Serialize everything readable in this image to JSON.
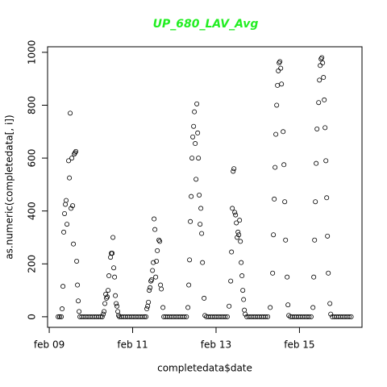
{
  "chart_data": {
    "type": "scatter",
    "title": "UP_680_LAV_Avg",
    "title_color": "#22ee22",
    "xlabel": "completedata$date",
    "ylabel": "as.numeric(completedata[, i])",
    "color": "#000000",
    "grid": false,
    "xlim": [
      -0.04,
      7.5
    ],
    "ylim": [
      -40,
      1021
    ],
    "xticks": [
      {
        "value": 0,
        "label": "feb 09"
      },
      {
        "value": 2,
        "label": "feb 11"
      },
      {
        "value": 4,
        "label": "feb 13"
      },
      {
        "value": 6,
        "label": "feb 15"
      }
    ],
    "yticks": [
      0,
      200,
      400,
      600,
      800,
      1000
    ],
    "x": [
      0.213,
      0.251,
      0.29,
      0.309,
      0.329,
      0.348,
      0.367,
      0.387,
      0.406,
      0.425,
      0.464,
      0.484,
      0.503,
      0.522,
      0.542,
      0.561,
      0.58,
      0.6,
      0.619,
      0.638,
      0.658,
      0.677,
      0.696,
      0.716,
      0.735,
      0.78,
      0.83,
      0.88,
      0.93,
      0.98,
      1.03,
      1.08,
      1.13,
      1.18,
      1.23,
      1.27,
      1.296,
      1.315,
      1.334,
      1.354,
      1.373,
      1.393,
      1.412,
      1.431,
      1.47,
      1.489,
      1.509,
      1.528,
      1.547,
      1.567,
      1.586,
      1.605,
      1.625,
      1.644,
      1.663,
      1.683,
      1.73,
      1.78,
      1.83,
      1.88,
      1.93,
      1.98,
      2.03,
      2.08,
      2.13,
      2.18,
      2.23,
      2.28,
      2.32,
      2.34,
      2.36,
      2.379,
      2.398,
      2.418,
      2.437,
      2.456,
      2.476,
      2.495,
      2.514,
      2.534,
      2.553,
      2.572,
      2.592,
      2.63,
      2.65,
      2.669,
      2.688,
      2.727,
      2.746,
      2.79,
      2.84,
      2.89,
      2.94,
      2.99,
      3.04,
      3.09,
      3.14,
      3.19,
      3.24,
      3.29,
      3.326,
      3.346,
      3.365,
      3.384,
      3.404,
      3.423,
      3.442,
      3.462,
      3.481,
      3.501,
      3.52,
      3.539,
      3.559,
      3.578,
      3.597,
      3.617,
      3.636,
      3.655,
      3.675,
      3.713,
      3.733,
      3.771,
      3.82,
      3.87,
      3.92,
      3.97,
      4.02,
      4.07,
      4.12,
      4.17,
      4.22,
      4.27,
      4.313,
      4.352,
      4.371,
      4.39,
      4.41,
      4.429,
      4.448,
      4.468,
      4.487,
      4.506,
      4.526,
      4.545,
      4.564,
      4.584,
      4.603,
      4.622,
      4.642,
      4.661,
      4.68,
      4.7,
      4.738,
      4.79,
      4.84,
      4.89,
      4.94,
      4.99,
      5.04,
      5.09,
      5.14,
      5.19,
      5.24,
      5.299,
      5.357,
      5.376,
      5.396,
      5.415,
      5.434,
      5.454,
      5.473,
      5.493,
      5.512,
      5.531,
      5.551,
      5.57,
      5.609,
      5.628,
      5.647,
      5.667,
      5.705,
      5.725,
      5.744,
      5.783,
      5.83,
      5.88,
      5.93,
      5.98,
      6.03,
      6.08,
      6.13,
      6.18,
      6.23,
      6.28,
      6.324,
      6.343,
      6.363,
      6.382,
      6.401,
      6.421,
      6.46,
      6.479,
      6.498,
      6.518,
      6.537,
      6.556,
      6.576,
      6.595,
      6.614,
      6.634,
      6.653,
      6.672,
      6.692,
      6.73,
      6.75,
      6.788,
      6.84,
      6.89,
      6.94,
      6.99,
      7.04,
      7.09,
      7.14,
      7.19,
      7.24
    ],
    "values": [
      0,
      0,
      0,
      30,
      115,
      320,
      390,
      425,
      440,
      350,
      590,
      525,
      770,
      410,
      600,
      420,
      275,
      615,
      620,
      625,
      210,
      120,
      60,
      20,
      0,
      0,
      0,
      0,
      0,
      0,
      0,
      0,
      0,
      0,
      0,
      0,
      10,
      20,
      50,
      85,
      70,
      75,
      100,
      155,
      225,
      240,
      240,
      300,
      185,
      150,
      80,
      50,
      40,
      20,
      5,
      0,
      0,
      0,
      0,
      0,
      0,
      0,
      0,
      0,
      0,
      0,
      0,
      0,
      0,
      30,
      40,
      55,
      100,
      110,
      135,
      140,
      175,
      205,
      370,
      330,
      150,
      210,
      250,
      290,
      285,
      120,
      105,
      35,
      0,
      0,
      0,
      0,
      0,
      0,
      0,
      0,
      0,
      0,
      0,
      0,
      35,
      120,
      215,
      360,
      455,
      600,
      680,
      720,
      775,
      655,
      520,
      805,
      695,
      600,
      460,
      350,
      410,
      315,
      205,
      70,
      5,
      0,
      0,
      0,
      0,
      0,
      0,
      0,
      0,
      0,
      0,
      0,
      40,
      135,
      245,
      410,
      550,
      560,
      395,
      385,
      355,
      300,
      320,
      310,
      365,
      285,
      205,
      155,
      100,
      65,
      25,
      10,
      0,
      0,
      0,
      0,
      0,
      0,
      0,
      0,
      0,
      0,
      0,
      35,
      165,
      310,
      445,
      565,
      690,
      800,
      875,
      930,
      960,
      965,
      940,
      880,
      700,
      575,
      435,
      290,
      150,
      45,
      5,
      0,
      0,
      0,
      0,
      0,
      0,
      0,
      0,
      0,
      0,
      0,
      35,
      150,
      290,
      435,
      580,
      710,
      810,
      895,
      950,
      975,
      980,
      960,
      905,
      820,
      715,
      590,
      450,
      305,
      165,
      50,
      10,
      0,
      0,
      0,
      0,
      0,
      0,
      0,
      0,
      0,
      0
    ]
  }
}
